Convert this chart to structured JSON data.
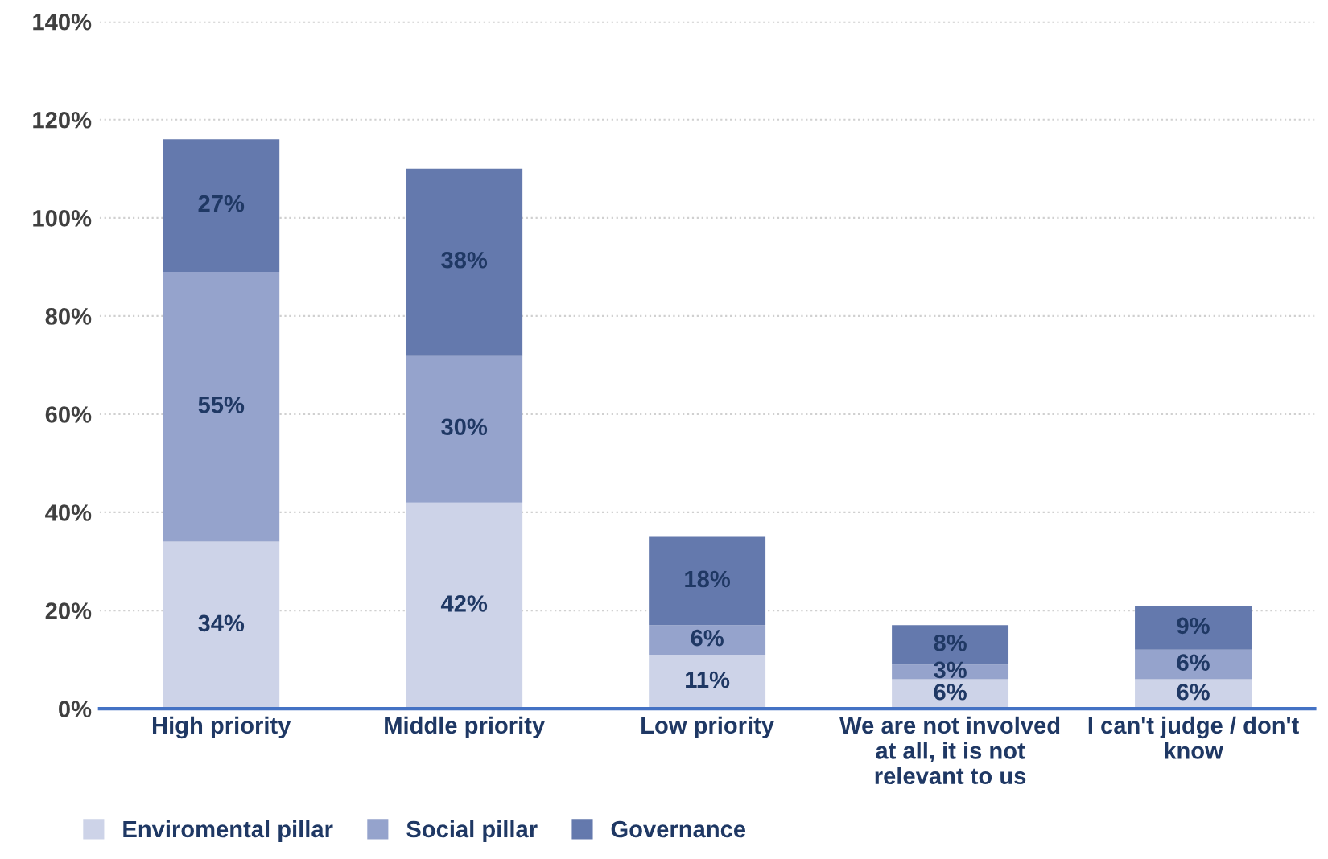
{
  "chart_data": {
    "type": "bar",
    "stacked": true,
    "categories": [
      "High priority",
      "Middle priority",
      "Low priority",
      "We are not involved\nat all, it is not\nrelevant to us",
      "I can't judge / don't\nknow"
    ],
    "series": [
      {
        "name": "Enviromental pillar",
        "color": "#cdd3e8",
        "values": [
          34,
          42,
          11,
          6,
          6
        ],
        "value_labels": [
          "34%",
          "42%",
          "11%",
          "6%",
          "6%"
        ]
      },
      {
        "name": "Social pillar",
        "color": "#95a3cc",
        "values": [
          55,
          30,
          6,
          3,
          6
        ],
        "value_labels": [
          "55%",
          "30%",
          "6%",
          "3%",
          "6%"
        ]
      },
      {
        "name": "Governance",
        "color": "#6479ad",
        "values": [
          27,
          38,
          18,
          8,
          9
        ],
        "value_labels": [
          "27%",
          "38%",
          "18%",
          "8%",
          "9%"
        ]
      }
    ],
    "ylim": [
      0,
      140
    ],
    "yticks": [
      {
        "value": 0,
        "label": "0%"
      },
      {
        "value": 20,
        "label": "20%"
      },
      {
        "value": 40,
        "label": "40%"
      },
      {
        "value": 60,
        "label": "60%"
      },
      {
        "value": 80,
        "label": "80%"
      },
      {
        "value": 100,
        "label": "100%"
      },
      {
        "value": 120,
        "label": "120%"
      },
      {
        "value": 140,
        "label": "140%"
      }
    ],
    "grid": "y",
    "legend": "bottom left"
  }
}
